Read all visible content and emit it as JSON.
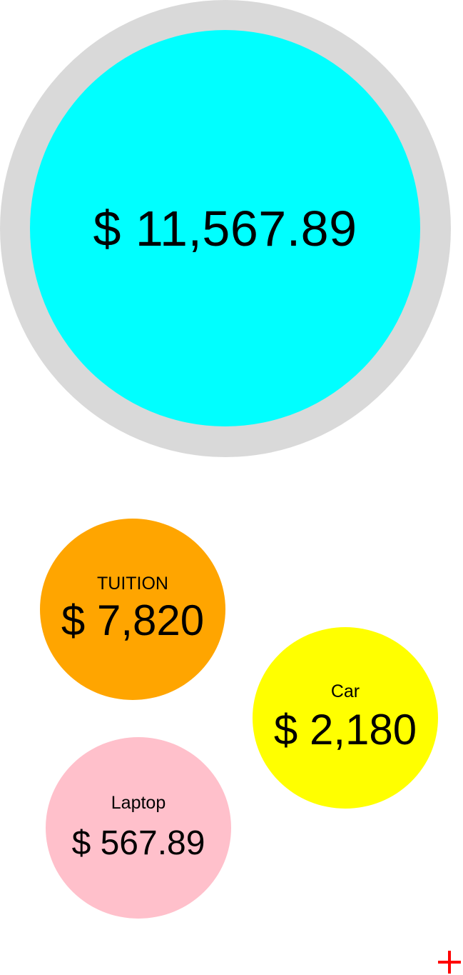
{
  "colors": {
    "ring": "#d9d9d9",
    "total": "#00ffff",
    "tuition": "#ffa500",
    "car": "#ffff00",
    "laptop": "#ffc0cb",
    "add": "#ff0000"
  },
  "total": {
    "amount": "$ 11,567.89"
  },
  "goals": [
    {
      "name": "TUITION",
      "amount": "$ 7,820",
      "color": "#ffa500"
    },
    {
      "name": "Car",
      "amount": "$ 2,180",
      "color": "#ffff00"
    },
    {
      "name": "Laptop",
      "amount": "$ 567.89",
      "color": "#ffc0cb"
    }
  ],
  "add_button": {
    "icon": "plus-icon",
    "color": "#ff0000"
  }
}
